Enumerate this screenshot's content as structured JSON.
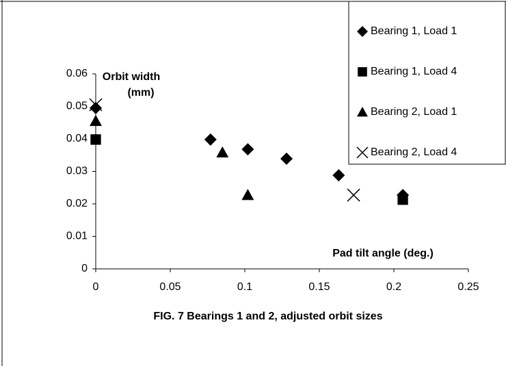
{
  "chart_data": {
    "type": "scatter",
    "title": "FIG. 7 Bearings 1 and 2, adjusted orbit sizes",
    "ylabel": [
      "Orbit width",
      "(mm)"
    ],
    "xlabel": "Pad  tilt angle (deg.)",
    "xlim": [
      0,
      0.25
    ],
    "xticks": [
      0,
      0.05,
      0.1,
      0.15,
      0.2,
      0.25
    ],
    "ylim": [
      0,
      0.06
    ],
    "yticks": [
      0,
      0.01,
      0.02,
      0.03,
      0.04,
      0.05,
      0.06
    ],
    "grid": false,
    "legend": "top-right",
    "series": [
      {
        "name": "Bearing 1, Load 1",
        "marker": "diamond",
        "color": "#000000",
        "x": [
          0,
          0.077,
          0.102,
          0.128,
          0.163,
          0.206
        ],
        "values": [
          0.0495,
          0.0398,
          0.0368,
          0.0339,
          0.0288,
          0.0227
        ]
      },
      {
        "name": "Bearing 1, Load 4",
        "marker": "square",
        "color": "#000000",
        "x": [
          0,
          0.206
        ],
        "values": [
          0.0398,
          0.0213
        ]
      },
      {
        "name": "Bearing 2, Load 1",
        "marker": "triangle",
        "color": "#000000",
        "x": [
          0,
          0.085,
          0.102
        ],
        "values": [
          0.0455,
          0.0358,
          0.0227
        ]
      },
      {
        "name": "Bearing 2, Load 4",
        "marker": "x",
        "color": "#000000",
        "x": [
          0,
          0.173
        ],
        "values": [
          0.0505,
          0.0227
        ]
      }
    ]
  }
}
